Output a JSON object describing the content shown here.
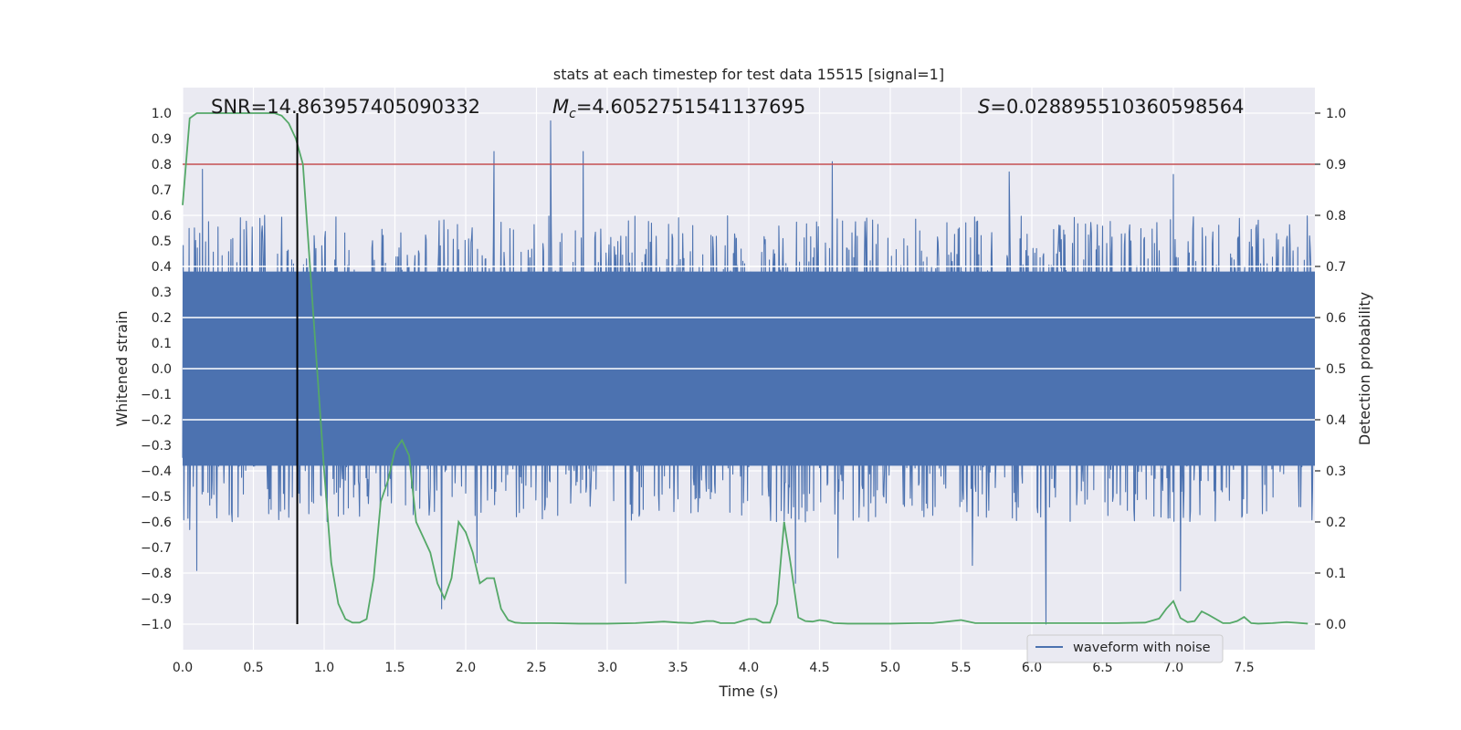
{
  "chart_data": {
    "type": "line",
    "title": "stats at each timestep for test data 15515 [signal=1]",
    "xlabel": "Time (s)",
    "ylabel": "Whitened strain",
    "y2label": "Detection probability",
    "xlim": [
      0.0,
      8.0
    ],
    "ylim": [
      -1.1,
      1.1
    ],
    "y2lim": [
      -0.05,
      1.05
    ],
    "xticks": [
      "0.0",
      "0.5",
      "1.0",
      "1.5",
      "2.0",
      "2.5",
      "3.0",
      "3.5",
      "4.0",
      "4.5",
      "5.0",
      "5.5",
      "6.0",
      "6.5",
      "7.0",
      "7.5"
    ],
    "yticks": [
      "1.0",
      "0.9",
      "0.8",
      "0.7",
      "0.6",
      "0.5",
      "0.4",
      "0.3",
      "0.2",
      "0.1",
      "0.0",
      "-0.1",
      "-0.2",
      "-0.3",
      "-0.4",
      "-0.5",
      "-0.6",
      "-0.7",
      "-0.8",
      "-0.9",
      "-1.0"
    ],
    "y2ticks": [
      "1.0",
      "0.9",
      "0.8",
      "0.7",
      "0.6",
      "0.5",
      "0.4",
      "0.3",
      "0.2",
      "0.1",
      "0.0"
    ],
    "grid": true,
    "legend": {
      "entries": [
        "waveform with noise"
      ],
      "placement": "lower-right"
    },
    "annotations": {
      "snr": "SNR=14.863957405090332",
      "mc_symbol": "M",
      "mc_sub": "c",
      "mc_value": "=4.6052751541137695",
      "s_symbol": "S",
      "s_value": "=0.028895510360598564"
    },
    "colors": {
      "background": "#eaeaf2",
      "grid": "#ffffff",
      "waveform": "#4c72b0",
      "probability": "#55a868",
      "threshold": "#c44e52",
      "marker": "#000000"
    },
    "threshold_probability": 0.9,
    "marker_time": 0.81,
    "series": [
      {
        "name": "waveform with noise",
        "axis": "left",
        "style": "dense noisy strain, envelope approx ±0.45, occasional spikes",
        "samples_per_second": 240,
        "spikes": [
          {
            "t": 0.14,
            "v": 0.78
          },
          {
            "t": 0.05,
            "v": -0.63
          },
          {
            "t": 0.1,
            "v": -0.79
          },
          {
            "t": 2.2,
            "v": 0.85
          },
          {
            "t": 2.6,
            "v": 0.97
          },
          {
            "t": 2.83,
            "v": 0.85
          },
          {
            "t": 1.83,
            "v": -0.94
          },
          {
            "t": 2.08,
            "v": -0.76
          },
          {
            "t": 3.13,
            "v": -0.84
          },
          {
            "t": 4.59,
            "v": 0.81
          },
          {
            "t": 4.33,
            "v": -0.84
          },
          {
            "t": 4.63,
            "v": -0.74
          },
          {
            "t": 5.84,
            "v": 0.77
          },
          {
            "t": 6.1,
            "v": -1.0
          },
          {
            "t": 7.0,
            "v": 0.76
          },
          {
            "t": 7.05,
            "v": -0.87
          },
          {
            "t": 5.58,
            "v": -0.77
          }
        ]
      },
      {
        "name": "detection probability",
        "axis": "right",
        "x": [
          0.0,
          0.05,
          0.1,
          0.2,
          0.3,
          0.4,
          0.5,
          0.6,
          0.65,
          0.7,
          0.75,
          0.8,
          0.85,
          0.9,
          1.0,
          1.05,
          1.1,
          1.15,
          1.2,
          1.25,
          1.3,
          1.35,
          1.4,
          1.45,
          1.5,
          1.55,
          1.6,
          1.65,
          1.7,
          1.75,
          1.8,
          1.85,
          1.9,
          1.95,
          2.0,
          2.05,
          2.1,
          2.15,
          2.2,
          2.25,
          2.3,
          2.35,
          2.4,
          2.45,
          2.5,
          2.6,
          2.8,
          3.0,
          3.2,
          3.4,
          3.5,
          3.6,
          3.7,
          3.75,
          3.8,
          3.85,
          3.9,
          4.0,
          4.05,
          4.1,
          4.15,
          4.2,
          4.25,
          4.3,
          4.35,
          4.4,
          4.45,
          4.5,
          4.55,
          4.6,
          4.7,
          4.8,
          5.0,
          5.2,
          5.3,
          5.5,
          5.6,
          5.65,
          5.8,
          6.0,
          6.2,
          6.4,
          6.6,
          6.8,
          6.9,
          6.95,
          7.0,
          7.05,
          7.1,
          7.15,
          7.2,
          7.25,
          7.3,
          7.35,
          7.4,
          7.45,
          7.5,
          7.55,
          7.6,
          7.7,
          7.8,
          7.95
        ],
        "y": [
          0.82,
          0.99,
          1.0,
          1.0,
          1.0,
          1.0,
          1.0,
          1.0,
          1.0,
          0.995,
          0.98,
          0.95,
          0.9,
          0.7,
          0.3,
          0.12,
          0.04,
          0.01,
          0.003,
          0.003,
          0.01,
          0.09,
          0.24,
          0.28,
          0.34,
          0.36,
          0.33,
          0.2,
          0.17,
          0.14,
          0.08,
          0.05,
          0.09,
          0.2,
          0.18,
          0.14,
          0.08,
          0.09,
          0.09,
          0.03,
          0.008,
          0.003,
          0.002,
          0.002,
          0.002,
          0.002,
          0.001,
          0.001,
          0.002,
          0.005,
          0.003,
          0.002,
          0.006,
          0.006,
          0.002,
          0.002,
          0.002,
          0.01,
          0.01,
          0.003,
          0.003,
          0.04,
          0.2,
          0.11,
          0.013,
          0.006,
          0.005,
          0.008,
          0.006,
          0.002,
          0.001,
          0.001,
          0.001,
          0.002,
          0.002,
          0.008,
          0.002,
          0.002,
          0.002,
          0.002,
          0.002,
          0.002,
          0.002,
          0.003,
          0.011,
          0.03,
          0.045,
          0.012,
          0.004,
          0.006,
          0.025,
          0.018,
          0.01,
          0.002,
          0.002,
          0.006,
          0.014,
          0.002,
          0.001,
          0.002,
          0.004,
          0.001
        ]
      }
    ]
  }
}
